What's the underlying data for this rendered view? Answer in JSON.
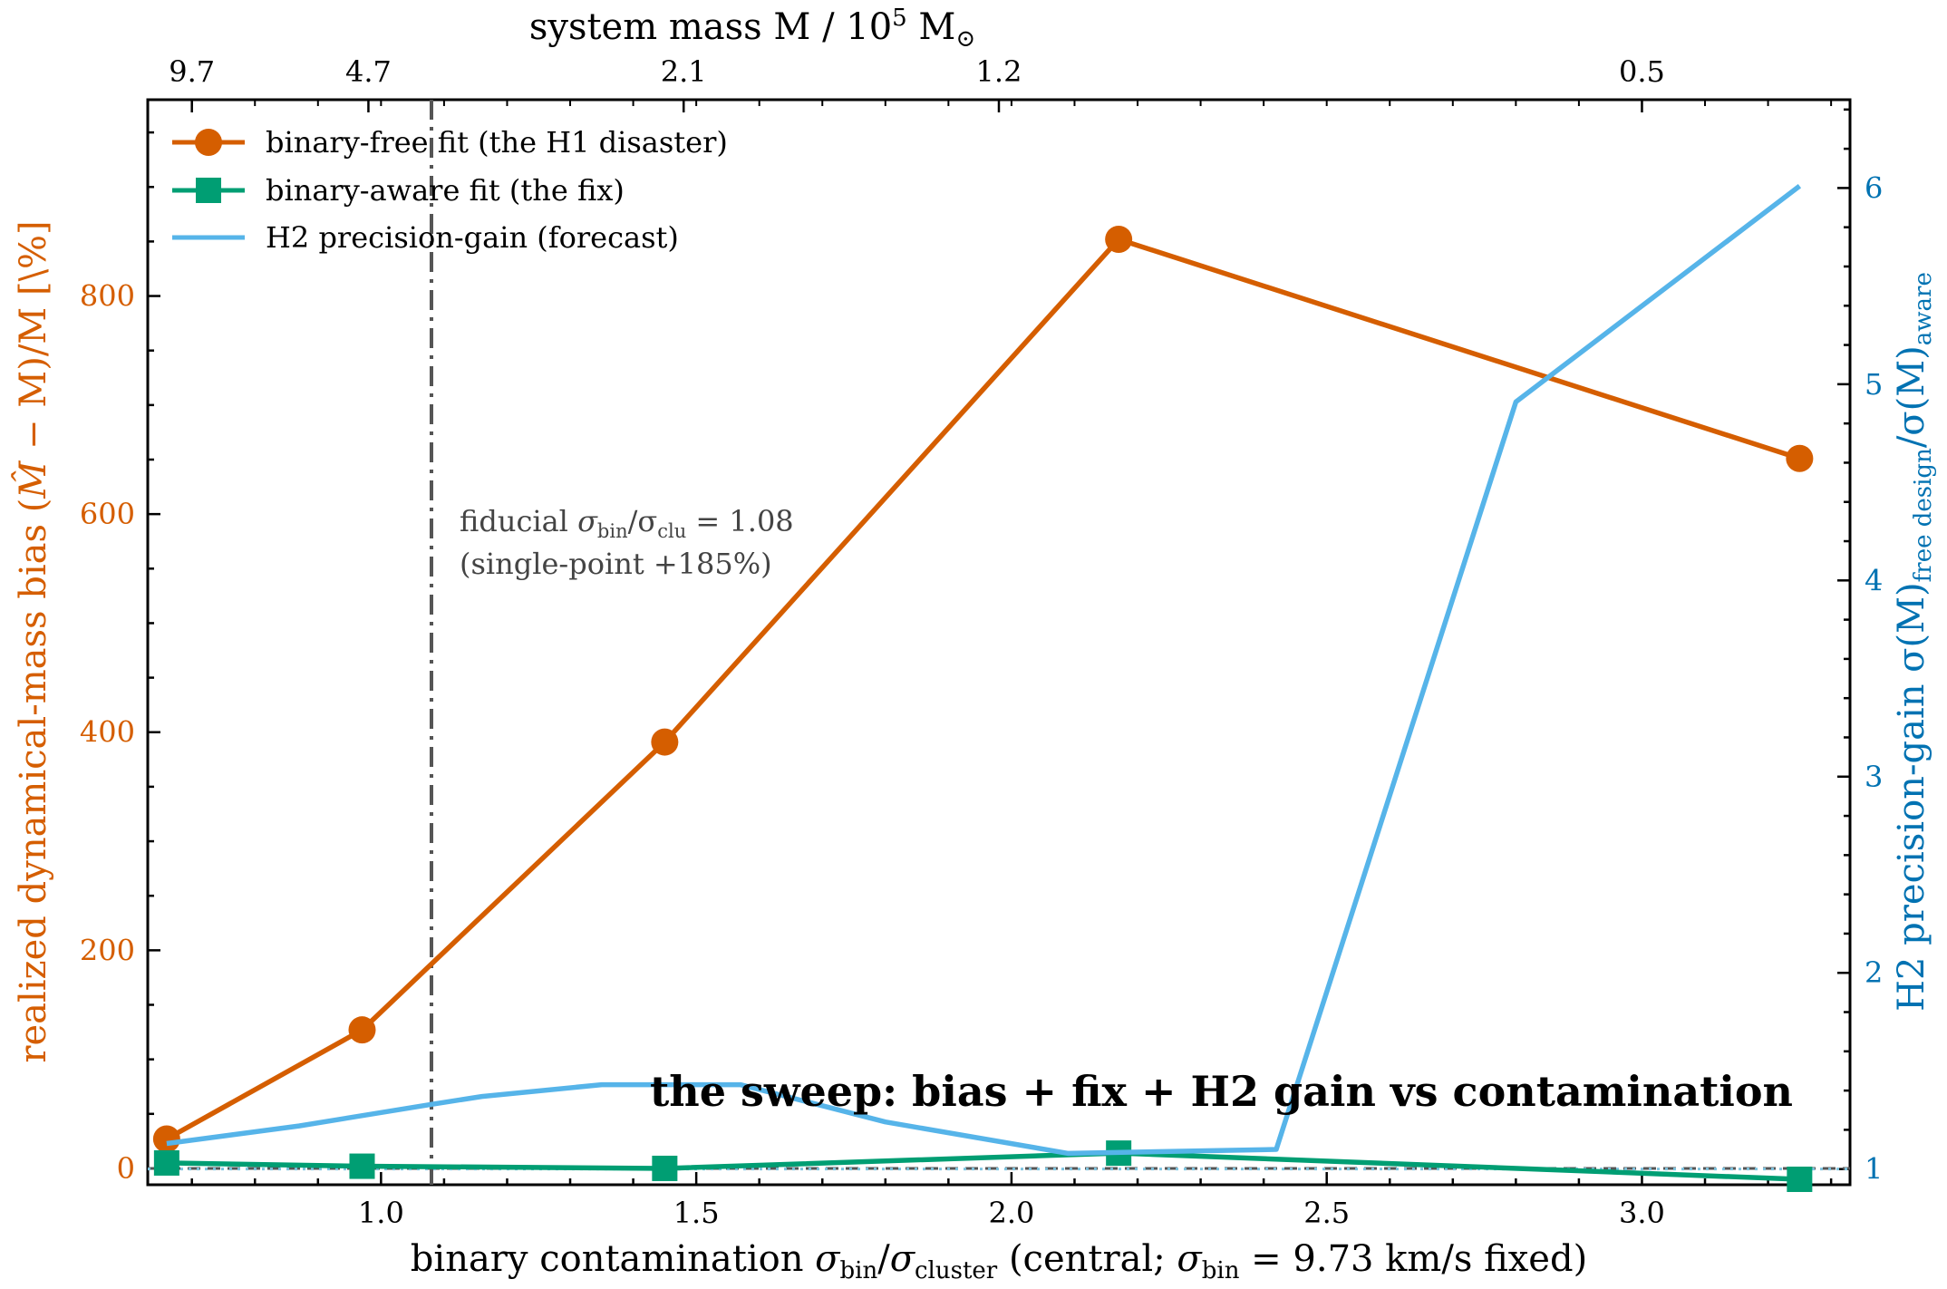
{
  "chart_data": {
    "type": "line",
    "title": "the sweep: bias + fix + H2 gain vs contamination",
    "xlabel": "binary contamination  σ_bin/σ_cluster  (central; σ_bin = 9.73 km/s fixed)",
    "xlabel_parts": {
      "pre": "binary contamination  ",
      "sym1": "σ",
      "sub1": "bin",
      "slash": "/",
      "sym2": "σ",
      "sub2": "cluster",
      "mid": "  (central; ",
      "sym3": "σ",
      "sub3": "bin",
      "post": " = 9.73 km/s fixed)"
    },
    "ylabel_left": "realized dynamical-mass bias  (M̂ − M)/M  [\\%]",
    "ylabel_left_parts": {
      "pre": "realized dynamical-mass bias  (",
      "mhat": "M̂",
      "mid": " − M)/M  [\\%]"
    },
    "ylabel_right": "H2 precision-gain  σ(M)_free design/σ(M)_aware",
    "ylabel_right_parts": {
      "pre": "H2 precision-gain  σ(M)",
      "sub1": "free design",
      "mid": "/σ(M)",
      "sub2": "aware"
    },
    "top_xlabel": "system mass  M / 10⁵ M⊙",
    "top_xlabel_parts": {
      "pre": "system mass  M / 10",
      "sup": "5",
      "post": " M",
      "sub": "⊙"
    },
    "xlim": [
      0.63,
      3.33
    ],
    "ylim_left": [
      -15,
      980
    ],
    "ylim_right": [
      0.92,
      6.45
    ],
    "x_ticks": [
      1.0,
      1.5,
      2.0,
      2.5,
      3.0
    ],
    "x_tick_labels": [
      "1.0",
      "1.5",
      "2.0",
      "2.5",
      "3.0"
    ],
    "y_left_ticks": [
      0,
      200,
      400,
      600,
      800
    ],
    "y_left_tick_labels": [
      "0",
      "200",
      "400",
      "600",
      "800"
    ],
    "y_right_ticks": [
      1,
      2,
      3,
      4,
      5,
      6
    ],
    "y_right_tick_labels": [
      "1",
      "2",
      "3",
      "4",
      "5",
      "6"
    ],
    "top_ticks_x": [
      0.7,
      0.98,
      1.48,
      1.98,
      3.0
    ],
    "top_tick_labels": [
      "9.7",
      "4.7",
      "2.1",
      "1.2",
      "0.5"
    ],
    "series": [
      {
        "name": "binary-free fit (the H1 disaster)",
        "axis": "left",
        "color": "#d55e00",
        "marker": "circle",
        "x": [
          0.66,
          0.97,
          1.45,
          2.17,
          3.25
        ],
        "y": [
          27,
          127,
          391,
          852,
          651
        ]
      },
      {
        "name": "binary-aware fit (the fix)",
        "axis": "left",
        "color": "#009e73",
        "marker": "square",
        "x": [
          0.66,
          0.97,
          1.45,
          2.17,
          3.25
        ],
        "y": [
          5,
          2,
          0,
          14,
          -10
        ]
      },
      {
        "name": "H2 precision-gain (forecast)",
        "axis": "right",
        "color": "#56b4e9",
        "marker": "none",
        "x": [
          0.66,
          0.87,
          1.08,
          1.16,
          1.35,
          1.43,
          1.57,
          1.8,
          2.09,
          2.42,
          2.8,
          3.25
        ],
        "y": [
          1.13,
          1.22,
          1.33,
          1.37,
          1.43,
          1.43,
          1.43,
          1.24,
          1.08,
          1.1,
          4.91,
          6.01
        ]
      }
    ],
    "reference_lines": [
      {
        "type": "vline",
        "x": 1.08,
        "style": "dashdot",
        "color": "#555555"
      },
      {
        "type": "hline",
        "axis": "left",
        "y": 0,
        "style": "dashed",
        "color": "#555555"
      },
      {
        "type": "hline",
        "axis": "right",
        "y": 1.0,
        "style": "dotted",
        "color": "#7ec4e0"
      }
    ],
    "annotation": {
      "line1_pre": "fiducial ",
      "line1_math": "σ",
      "line1_sub1": "bin",
      "line1_mid": "/σ",
      "line1_sub2": "clu",
      "line1_post": " = 1.08",
      "line2": "(single-point +185%)"
    },
    "legend_position": "upper-left",
    "grid": false,
    "colors": {
      "left_axis": "#d55e00",
      "right_axis": "#0072b2",
      "frame": "#000000"
    }
  }
}
